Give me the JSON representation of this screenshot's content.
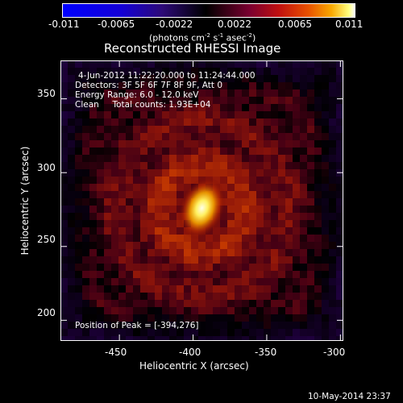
{
  "colorbar": {
    "ticks": [
      "-0.011",
      "-0.0065",
      "-0.0022",
      "0.0022",
      "0.0065",
      "0.011"
    ],
    "units_text": "(photons cm",
    "units_sup1": "-2",
    "units_mid": " s",
    "units_sup2": "-1",
    "units_end": " asec",
    "units_sup3": "-2",
    "units_close": ")"
  },
  "image": {
    "title": "Reconstructed RHESSI Image",
    "info_lines": [
      "4-Jun-2012 11:22:20.000 to 11:24:44.000",
      "Detectors: 3F 5F 6F 7F 8F 9F, Att 0",
      "Energy Range: 6.0 - 12.0 keV",
      "Clean     Total counts: 1.93E+04"
    ],
    "peak_text": "Position of Peak = [-394,276]",
    "xlabel": "Heliocentric X (arcsec)",
    "ylabel": "Heliocentric Y (arcsec)",
    "x_ticks": [
      "-450",
      "-400",
      "-350",
      "-300"
    ],
    "y_ticks": [
      "350",
      "300",
      "250",
      "200"
    ],
    "peak_position": [
      -394,
      276
    ]
  },
  "footer": {
    "timestamp": "10-May-2014 23:37"
  },
  "colors": {
    "background": "#000000",
    "foreground": "#ffffff",
    "peak": "#ffffc0"
  }
}
